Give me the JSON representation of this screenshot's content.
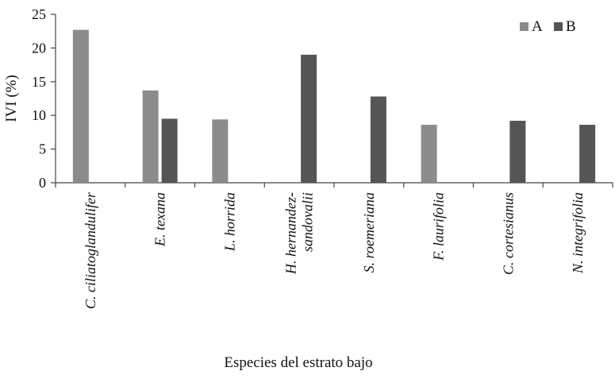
{
  "chart_data": {
    "type": "bar",
    "categories": [
      [
        "C. ciliatoglandulifer"
      ],
      [
        "E. texana"
      ],
      [
        "L. horrida"
      ],
      [
        "H. hernandez-",
        "sandovalii"
      ],
      [
        "S. roemeriana"
      ],
      [
        "F. laurifolia"
      ],
      [
        "C. cortesianus"
      ],
      [
        "N. integrifolia"
      ]
    ],
    "series": [
      {
        "name": "A",
        "color": "#8c8c8c",
        "values": [
          22.7,
          13.7,
          9.4,
          null,
          null,
          8.6,
          null,
          null
        ]
      },
      {
        "name": "B",
        "color": "#555555",
        "values": [
          null,
          9.5,
          null,
          19.0,
          12.8,
          null,
          9.2,
          8.6
        ]
      }
    ],
    "xlabel": "Especies del estrato bajo",
    "ylabel": "IVI (%)",
    "ylim": [
      0,
      25
    ],
    "yticks": [
      0,
      5,
      10,
      15,
      20,
      25
    ],
    "grid": false,
    "legend_position": "top-right"
  }
}
